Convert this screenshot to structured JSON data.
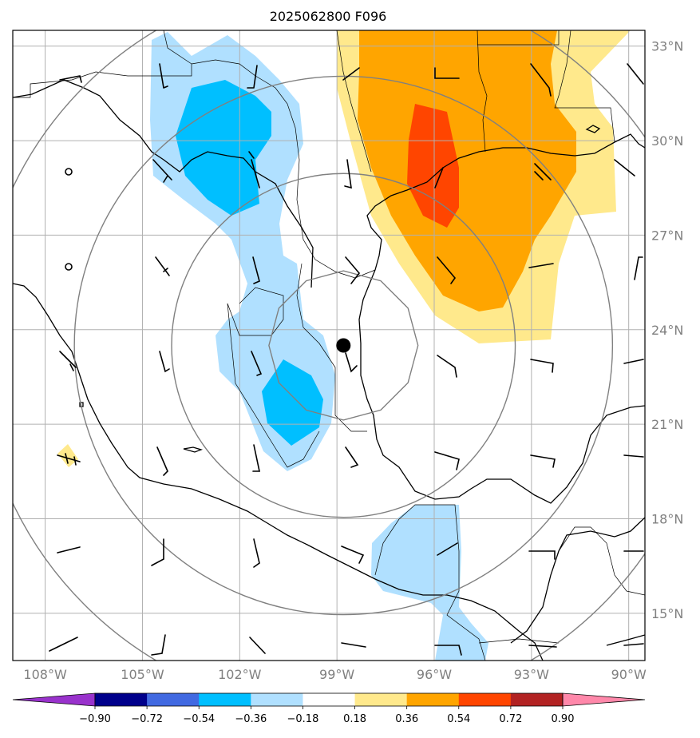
{
  "title": "2025062800 F096",
  "map": {
    "extent": {
      "lon_min": -109,
      "lon_max": -89.5,
      "lat_min": 13.5,
      "lat_max": 33.5
    },
    "lat_ticks": [
      {
        "value": 33,
        "label": "33°N"
      },
      {
        "value": 30,
        "label": "30°N"
      },
      {
        "value": 27,
        "label": "27°N"
      },
      {
        "value": 24,
        "label": "24°N"
      },
      {
        "value": 21,
        "label": "21°N"
      },
      {
        "value": 18,
        "label": "18°N"
      },
      {
        "value": 15,
        "label": "15°N"
      }
    ],
    "lon_ticks": [
      {
        "value": -108,
        "label": "108°W"
      },
      {
        "value": -105,
        "label": "105°W"
      },
      {
        "value": -102,
        "label": "102°W"
      },
      {
        "value": -99,
        "label": "99°W"
      },
      {
        "value": -96,
        "label": "96°W"
      },
      {
        "value": -93,
        "label": "93°W"
      },
      {
        "value": -90,
        "label": "90°W"
      }
    ],
    "center_marker": {
      "lon": -98.8,
      "lat": 23.5
    },
    "range_rings_deg": [
      2.3,
      5.3,
      8.3,
      11.3
    ],
    "colors": {
      "coast": "#000000",
      "border": "#000000",
      "grid": "#b0b0b0",
      "rings": "#808080"
    }
  },
  "colorbar": {
    "ticks": [
      "−0.90",
      "−0.72",
      "−0.54",
      "−0.36",
      "−0.18",
      "0.18",
      "0.36",
      "0.54",
      "0.72",
      "0.90"
    ],
    "colors": [
      "#9932cc",
      "#00008b",
      "#4169e1",
      "#00bfff",
      "#b0e0ff",
      "#ffffff",
      "#ffe98c",
      "#ffa500",
      "#ff4500",
      "#b22222",
      "#ff88aa"
    ]
  }
}
